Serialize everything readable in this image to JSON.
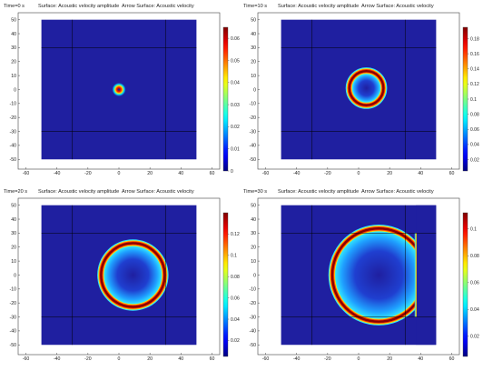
{
  "chart_data": [
    {
      "type": "heatmap",
      "time_label": "Time=0 s",
      "title": "Surface: Acoustic velocity amplitude  Arrow Surface: Acoustic velocity",
      "xlim": [
        -65,
        65
      ],
      "ylim": [
        -57,
        55
      ],
      "domain": [
        -50,
        50,
        -50,
        50
      ],
      "xticks": [
        -60,
        -40,
        -20,
        0,
        20,
        40,
        60
      ],
      "yticks": [
        50,
        40,
        30,
        20,
        10,
        0,
        -10,
        -20,
        -30,
        -40,
        -50
      ],
      "grid_lines_x": [
        -30,
        30
      ],
      "grid_lines_y": [
        30,
        -30
      ],
      "wave": {
        "cx": 0,
        "cy": 0,
        "radius": 1.8,
        "width": 1.6,
        "core": true,
        "clip_x": null
      },
      "colorbar": {
        "min": 0,
        "max": 0.065,
        "ticks": [
          "0.06",
          "0.05",
          "0.04",
          "0.03",
          "0.02",
          "0.01",
          "0"
        ],
        "tick_values": [
          0.06,
          0.05,
          0.04,
          0.03,
          0.02,
          0.01,
          0
        ]
      }
    },
    {
      "type": "heatmap",
      "time_label": "Time=10 s",
      "title": "Surface: Acoustic velocity amplitude  Arrow Surface: Acoustic velocity",
      "xlim": [
        -65,
        65
      ],
      "ylim": [
        -57,
        55
      ],
      "domain": [
        -50,
        50,
        -50,
        50
      ],
      "xticks": [
        -60,
        -40,
        -20,
        0,
        20,
        40,
        60
      ],
      "yticks": [
        50,
        40,
        30,
        20,
        10,
        0,
        -10,
        -20,
        -30,
        -40,
        -50
      ],
      "grid_lines_x": [
        -30,
        30
      ],
      "grid_lines_y": [
        30,
        -30
      ],
      "wave": {
        "cx": 5,
        "cy": 1,
        "radius": 11,
        "width": 2.5,
        "core": false,
        "clip_x": null
      },
      "colorbar": {
        "min": 0.005,
        "max": 0.195,
        "ticks": [
          "0.18",
          "0.16",
          "0.14",
          "0.12",
          "0.1",
          "0.08",
          "0.06",
          "0.04",
          "0.02"
        ],
        "tick_values": [
          0.18,
          0.16,
          0.14,
          0.12,
          0.1,
          0.08,
          0.06,
          0.04,
          0.02
        ]
      }
    },
    {
      "type": "heatmap",
      "time_label": "Time=20 s",
      "title": "Surface: Acoustic velocity amplitude  Arrow Surface: Acoustic velocity",
      "xlim": [
        -65,
        65
      ],
      "ylim": [
        -57,
        55
      ],
      "domain": [
        -50,
        50,
        -50,
        50
      ],
      "xticks": [
        -60,
        -40,
        -20,
        0,
        20,
        40,
        60
      ],
      "yticks": [
        50,
        40,
        30,
        20,
        10,
        0,
        -10,
        -20,
        -30,
        -40,
        -50
      ],
      "grid_lines_x": [
        -30,
        30
      ],
      "grid_lines_y": [
        30,
        -30
      ],
      "wave": {
        "cx": 9,
        "cy": 0,
        "radius": 20.5,
        "width": 2.6,
        "core": false,
        "clip_x": null
      },
      "colorbar": {
        "min": 0.005,
        "max": 0.14,
        "ticks": [
          "0.12",
          "0.1",
          "0.08",
          "0.06",
          "0.04",
          "0.02"
        ],
        "tick_values": [
          0.12,
          0.1,
          0.08,
          0.06,
          0.04,
          0.02
        ]
      }
    },
    {
      "type": "heatmap",
      "time_label": "Time=30 s",
      "title": "Surface: Acoustic velocity amplitude  Arrow Surface: Acoustic velocity",
      "xlim": [
        -65,
        65
      ],
      "ylim": [
        -57,
        55
      ],
      "domain": [
        -50,
        50,
        -50,
        50
      ],
      "xticks": [
        -60,
        -40,
        -20,
        0,
        20,
        40,
        60
      ],
      "yticks": [
        50,
        40,
        30,
        20,
        10,
        0,
        -10,
        -20,
        -30,
        -40,
        -50
      ],
      "grid_lines_x": [
        -30,
        30
      ],
      "grid_lines_y": [
        30,
        -30
      ],
      "wave": {
        "cx": 13,
        "cy": 0,
        "radius": 30,
        "width": 2.6,
        "core": false,
        "clip_x": 37
      },
      "colorbar": {
        "min": 0.005,
        "max": 0.112,
        "ticks": [
          "0.1",
          "0.08",
          "0.06",
          "0.04",
          "0.02"
        ],
        "tick_values": [
          0.1,
          0.08,
          0.06,
          0.04,
          0.02
        ]
      }
    }
  ]
}
